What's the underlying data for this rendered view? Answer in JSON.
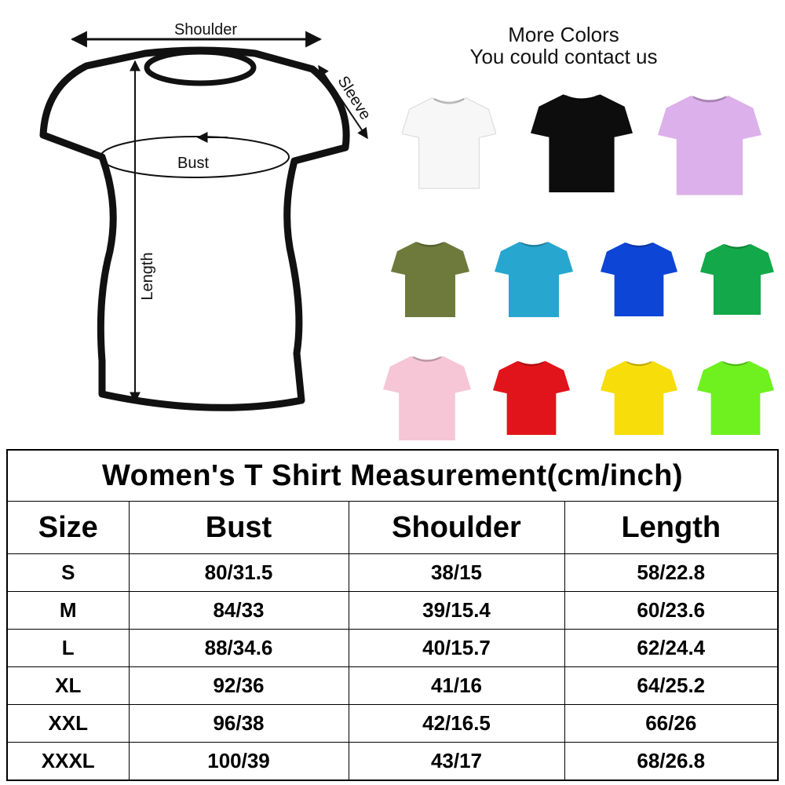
{
  "diagram": {
    "shoulder": "Shoulder",
    "sleeve": "Sleeve",
    "bust": "Bust",
    "length": "Length"
  },
  "colors_heading": {
    "line1": "More Colors",
    "line2": "You could contact us"
  },
  "table": {
    "title": "Women's T Shirt Measurement(cm/inch)",
    "header": [
      "Size",
      "Bust",
      "Shoulder",
      "Length"
    ],
    "rows": [
      [
        "S",
        "80/31.5",
        "38/15",
        "58/22.8"
      ],
      [
        "M",
        "84/33",
        "39/15.4",
        "60/23.6"
      ],
      [
        "L",
        "88/34.6",
        "40/15.7",
        "62/24.4"
      ],
      [
        "XL",
        "92/36",
        "41/16",
        "64/25.2"
      ],
      [
        "XXL",
        "96/38",
        "42/16.5",
        "66/26"
      ],
      [
        "XXXL",
        "100/39",
        "43/17",
        "68/26.8"
      ]
    ]
  }
}
